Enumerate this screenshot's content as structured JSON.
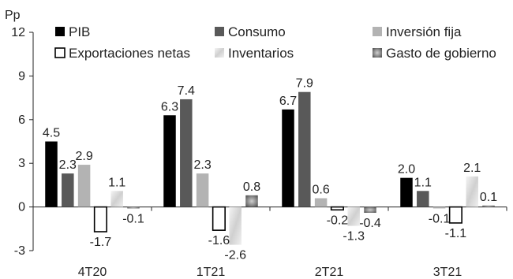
{
  "chart_data": {
    "type": "bar",
    "ylabel": "Pp",
    "ylim": [
      -3,
      12
    ],
    "yticks": [
      12,
      9,
      6,
      3,
      0,
      -3
    ],
    "categories": [
      "4T20",
      "1T21",
      "2T21",
      "3T21"
    ],
    "legend_position": "top",
    "grid": false,
    "series": [
      {
        "name": "PIB",
        "values": [
          4.5,
          6.3,
          6.7,
          2.0
        ],
        "labels": [
          "4.5",
          "6.3",
          "6.7",
          "2.0"
        ],
        "color": "#000000",
        "fill": "solid"
      },
      {
        "name": "Consumo",
        "values": [
          2.3,
          7.4,
          7.9,
          1.1
        ],
        "labels": [
          "2.3",
          "7.4",
          "7.9",
          "1.1"
        ],
        "color": "#595959",
        "fill": "solid"
      },
      {
        "name": "Inversión fija",
        "values": [
          2.9,
          2.3,
          0.6,
          -0.1
        ],
        "labels": [
          "2.9",
          "2.3",
          "0.6",
          "-0.1"
        ],
        "color": "#b3b3b3",
        "fill": "solid"
      },
      {
        "name": "Exportaciones netas",
        "values": [
          -1.7,
          -1.6,
          -0.2,
          -1.1
        ],
        "labels": [
          "-1.7",
          "-1.6",
          "-0.2",
          "-1.1"
        ],
        "color": "#000000",
        "fill": "outline"
      },
      {
        "name": "Inventarios",
        "values": [
          1.1,
          -2.6,
          -1.3,
          2.1
        ],
        "labels": [
          "1.1",
          "-2.6",
          "-1.3",
          "2.1"
        ],
        "color": "#e6e6e6",
        "fill": "gradient"
      },
      {
        "name": "Gasto de gobierno",
        "values": [
          -0.1,
          0.8,
          -0.4,
          0.1
        ],
        "labels": [
          "-0.1",
          "0.8",
          "-0.4",
          "0.1"
        ],
        "color": "#8c8c8c",
        "fill": "texture"
      }
    ]
  }
}
